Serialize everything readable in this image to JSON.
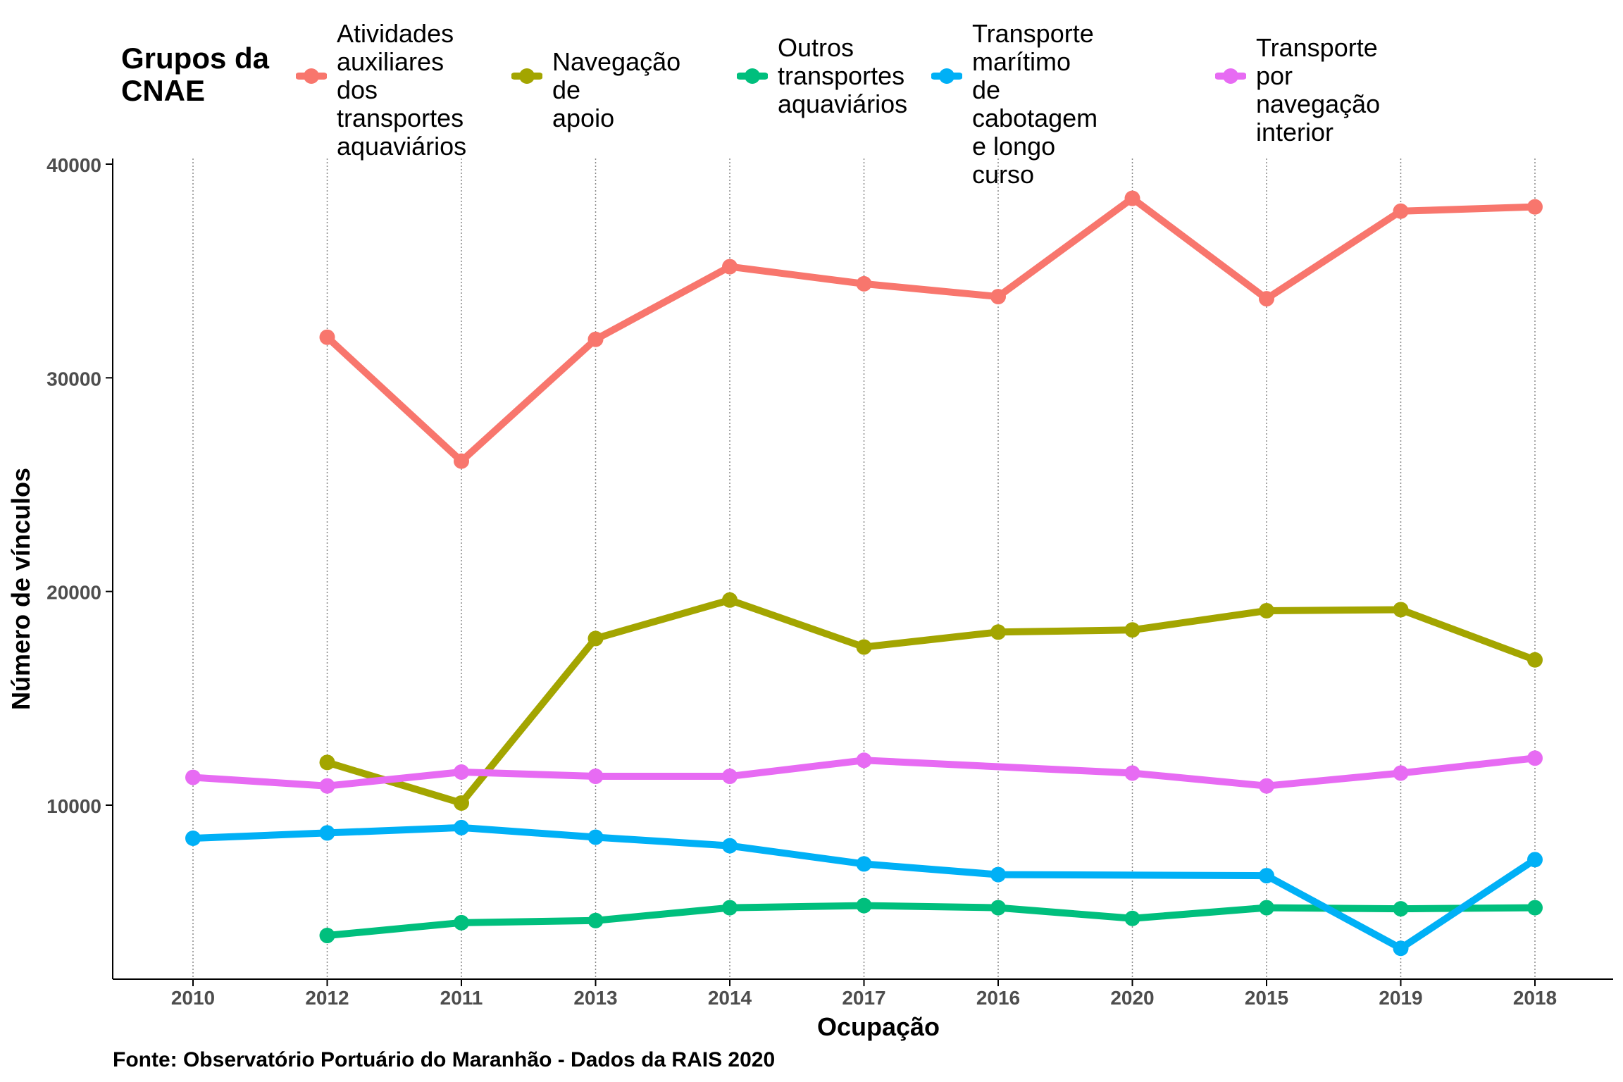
{
  "chart_data": {
    "type": "line",
    "xlabel": "Ocupação",
    "ylabel": "Número de vínculos",
    "caption": "Fonte: Observatório Portuário do Maranhão - Dados da RAIS 2020",
    "legend_title": "Grupos da\nCNAE",
    "legend_position": "top",
    "categories": [
      "2010",
      "2012",
      "2011",
      "2013",
      "2014",
      "2017",
      "2016",
      "2020",
      "2015",
      "2019",
      "2018"
    ],
    "ylim": [
      3000,
      40000
    ],
    "yticks": [
      10000,
      20000,
      30000,
      40000
    ],
    "grid": "vertical dotted lines at x categories",
    "series": [
      {
        "name": "Atividades\nauxiliares dos\ntransportes\naquaviários",
        "color": "#F8766D",
        "values": [
          null,
          31900,
          26100,
          31800,
          35200,
          34400,
          33800,
          38400,
          33700,
          37800,
          38000
        ]
      },
      {
        "name": "Navegação de\napoio",
        "color": "#A3A500",
        "values": [
          null,
          12000,
          10100,
          17800,
          19600,
          17400,
          18100,
          18200,
          19100,
          19150,
          16800
        ]
      },
      {
        "name": "Outros\ntransportes\naquaviários",
        "color": "#00BF7D",
        "values": [
          null,
          3900,
          4500,
          4600,
          5200,
          5300,
          5200,
          4700,
          5200,
          5150,
          5200
        ]
      },
      {
        "name": "Transporte\nmarítimo de\ncabotagem e longo\ncurso",
        "color": "#00B0F6",
        "values": [
          8450,
          8700,
          8950,
          8500,
          8100,
          7250,
          6750,
          null,
          6700,
          3300,
          7450
        ]
      },
      {
        "name": "Transporte por\nnavegação\ninterior",
        "color": "#E76BF3",
        "values": [
          11300,
          10900,
          11550,
          11350,
          11350,
          12100,
          null,
          11500,
          10900,
          11500,
          12200
        ]
      }
    ]
  }
}
